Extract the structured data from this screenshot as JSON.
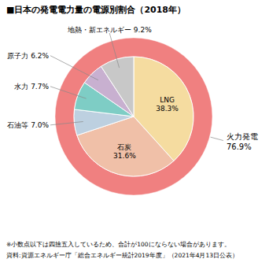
{
  "chart_data": {
    "type": "pie",
    "title": "■日本の発電電力量の電源別割合（2018年）",
    "categories": [
      "LNG",
      "石炭",
      "石油等",
      "水力",
      "原子力",
      "地熱・新エネルギー"
    ],
    "values": [
      38.3,
      31.6,
      7.0,
      7.7,
      6.2,
      9.2
    ],
    "value_labels": [
      "38.3%",
      "31.6%",
      "7.0%",
      "7.7%",
      "6.2%",
      "9.2%"
    ],
    "colors": [
      "#F5DCA0",
      "#F0C0A8",
      "#BDD0E0",
      "#7ECDC5",
      "#C8B0D0",
      "#C8C8C8"
    ],
    "data_labels": true,
    "outer_ring": {
      "name": "火力発電",
      "value": 76.9,
      "value_label": "76.9%",
      "color": "#F08080"
    },
    "annotations": [
      "※小数点以下は四捨五入しているため、合計が100にならない場合があります。",
      "資料:資源エネルギー庁「総合エネルギー統計2019年度」（2021年4月13日公表）"
    ]
  }
}
